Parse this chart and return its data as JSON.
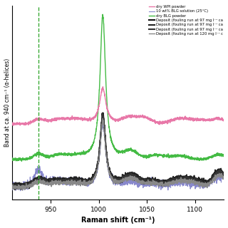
{
  "xlabel": "Raman shift (cm⁻¹)",
  "ylabel": "Band at ca. 940 cm⁻¹ (α-helices)",
  "xlim": [
    910,
    1130
  ],
  "dashed_line_x": 937,
  "dashed_line_color": "#3aaa35",
  "legend_entries": [
    "dry WPI powder",
    "10 wt% BLG solution (25°C)",
    "dry BLG powder",
    "Deposit (fouling run at 97 mg l⁻¹ ca",
    "Deposit (fouling run at 97 mg l⁻¹ ca",
    "Deposit (fouling run at 97 mg l⁻¹ ca",
    "Deposit (fouling run at 120 mg l⁻¹ c"
  ],
  "line_colors": [
    "#e878a8",
    "#8888cc",
    "#44bb44",
    "#111111",
    "#222222",
    "#333333",
    "#888888"
  ],
  "background_color": "#ffffff"
}
